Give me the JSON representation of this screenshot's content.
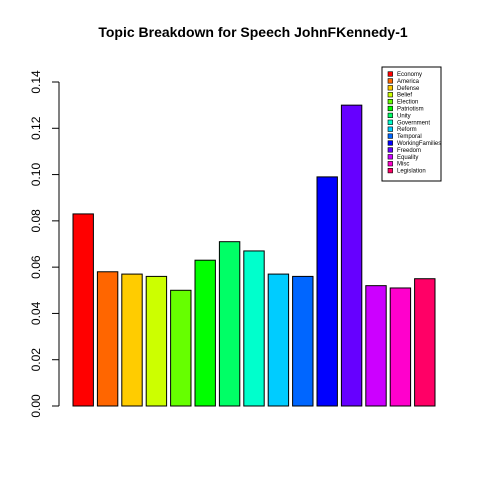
{
  "chart_data": {
    "type": "bar",
    "title": "Topic Breakdown for Speech JohnFKennedy-1",
    "xlabel": "",
    "ylabel": "",
    "ylim": [
      0,
      0.14
    ],
    "yticks": [
      "0.00",
      "0.02",
      "0.04",
      "0.06",
      "0.08",
      "0.10",
      "0.12",
      "0.14"
    ],
    "grid": false,
    "legend_position": "top-right",
    "categories": [
      "Economy",
      "America",
      "Defense",
      "Belief",
      "Election",
      "Patriotism",
      "Unity",
      "Government",
      "Reform",
      "Temporal",
      "WorkingFamilies",
      "Freedom",
      "Equality",
      "Misc",
      "Legislation"
    ],
    "values": [
      0.083,
      0.058,
      0.057,
      0.056,
      0.05,
      0.063,
      0.071,
      0.067,
      0.057,
      0.056,
      0.099,
      0.13,
      0.052,
      0.051,
      0.055
    ],
    "colors": [
      "#FF0000",
      "#FF6600",
      "#FFCC00",
      "#CCFF00",
      "#66FF00",
      "#00FF00",
      "#00FF66",
      "#00FFCC",
      "#00CCFF",
      "#0066FF",
      "#0000FF",
      "#6600FF",
      "#CC00FF",
      "#FF00CC",
      "#FF0066"
    ]
  }
}
